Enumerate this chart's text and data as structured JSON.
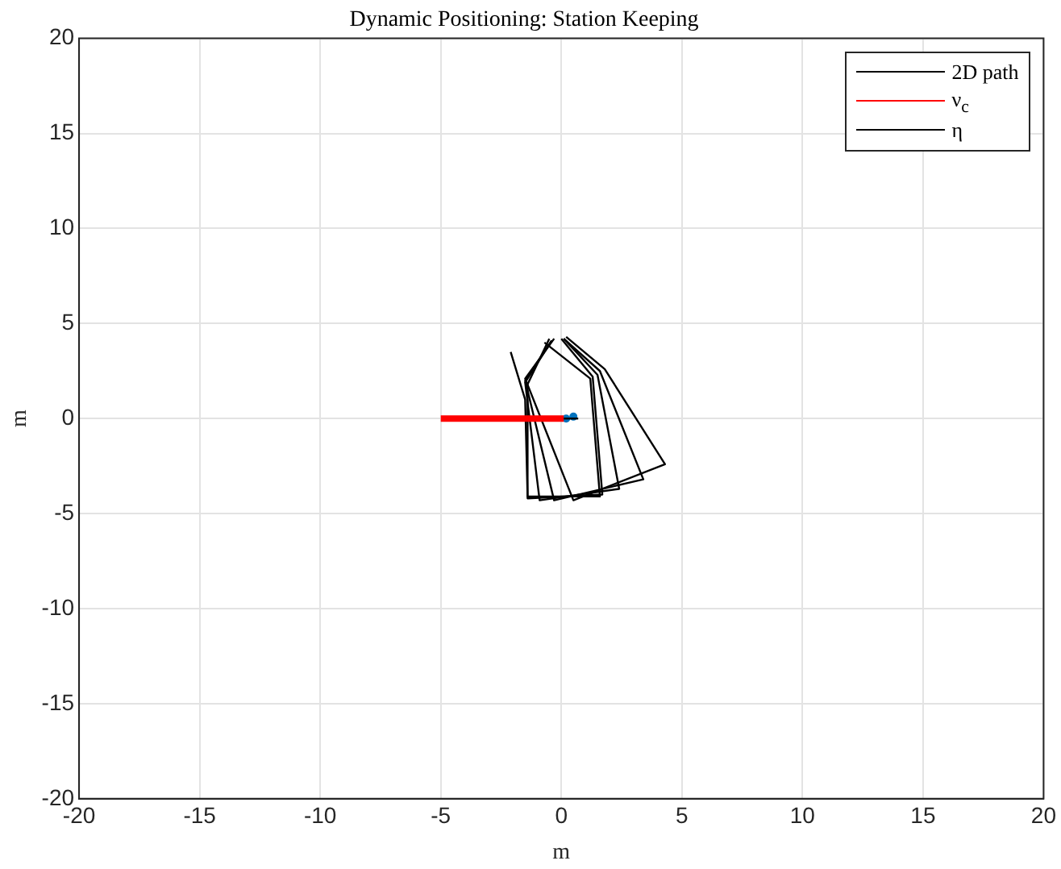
{
  "chart_data": {
    "type": "line",
    "title": "Dynamic Positioning: Station Keeping",
    "xlabel": "m",
    "ylabel": "m",
    "xlim": [
      -20,
      20
    ],
    "xticks": [
      -20,
      -15,
      -10,
      -5,
      0,
      5,
      10,
      15,
      20
    ],
    "ylim": [
      -20,
      20
    ],
    "yticks": [
      -20,
      -15,
      -10,
      -5,
      0,
      5,
      10,
      15,
      20
    ],
    "grid": true,
    "legend": "top right",
    "series": [
      {
        "name": "2D path",
        "color": "#000000",
        "x": [
          0.1,
          0.7
        ],
        "values": [
          0,
          0
        ]
      },
      {
        "name": "ν$_{c}$",
        "color": "#ff0000",
        "x": [
          -5,
          -1.4,
          0.1
        ],
        "values": [
          0,
          0,
          0
        ]
      },
      {
        "name": "η",
        "color": "#000000",
        "x": [
          0.0,
          1.3,
          1.7,
          -1.4,
          -1.4,
          -0.5
        ],
        "values": [
          4.2,
          2.2,
          -4.0,
          -4.2,
          1.8,
          4.2
        ]
      },
      {
        "color": "#000000",
        "x": [
          0.1,
          1.5,
          2.4,
          -0.9,
          -1.5,
          -0.4
        ],
        "values": [
          4.2,
          2.3,
          -3.7,
          -4.3,
          1.9,
          4.1
        ]
      },
      {
        "color": "#000000",
        "x": [
          0.1,
          1.6,
          3.4,
          -0.3,
          -1.5,
          -0.4
        ],
        "values": [
          4.2,
          2.5,
          -3.2,
          -4.3,
          2.0,
          4.1
        ]
      },
      {
        "color": "#000000",
        "x": [
          0.2,
          1.8,
          4.3,
          0.5,
          -1.5,
          -0.3
        ],
        "values": [
          4.3,
          2.6,
          -2.4,
          -4.3,
          2.1,
          4.2
        ]
      },
      {
        "color": "#000000",
        "x": [
          -0.7,
          1.2,
          1.6,
          -1.4,
          -1.5,
          -2.1
        ],
        "values": [
          4.0,
          2.1,
          -4.1,
          -4.1,
          1.0,
          3.5
        ]
      },
      {
        "type": "scatter",
        "color": "#0072bd",
        "marker": "circle",
        "x": [
          0.2,
          0.5
        ],
        "values": [
          0,
          0.1
        ]
      }
    ]
  }
}
